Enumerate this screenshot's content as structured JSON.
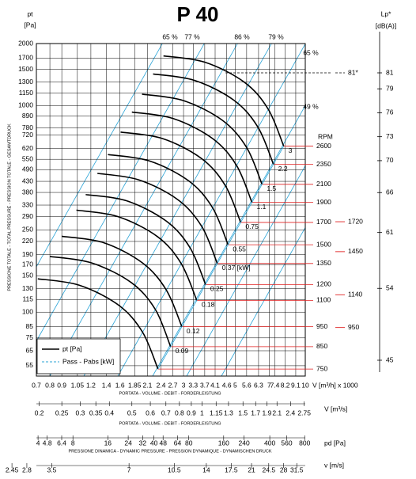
{
  "chart_data": {
    "type": "line",
    "title": "P 40",
    "y_label": [
      "pt",
      "[Pa]"
    ],
    "y_caption": "PRESSIONE TOTALE - TOTAL PRESSURE - PRESSION TOTALE - GESAMTDRUCK",
    "x_label": "V [m³/h] x 1000",
    "x_caption": "PORTATA - VOLUME - DEBIT - FORDERLEISTUNG",
    "log_x": true,
    "log_y": true,
    "grid": true,
    "xlim": [
      0.7,
      10
    ],
    "xticks": [
      0.7,
      0.8,
      0.9,
      1.05,
      1.2,
      1.4,
      1.6,
      1.85,
      2.1,
      2.4,
      2.7,
      3,
      3.3,
      3.7,
      4.1,
      4.6,
      5,
      5.6,
      6.3,
      7,
      7.4,
      8.2,
      9.1,
      10
    ],
    "ylim": [
      49,
      2000
    ],
    "yticks": [
      2000,
      1700,
      1500,
      1300,
      1150,
      1000,
      890,
      780,
      720,
      620,
      550,
      490,
      430,
      380,
      330,
      290,
      250,
      220,
      190,
      170,
      150,
      130,
      115,
      100,
      85,
      75,
      65,
      55
    ],
    "rpm_label": "RPM",
    "curve_color": "#000000",
    "rpm_color": "#e02020",
    "curves": [
      {
        "rpm": 2600,
        "power": "3",
        "x": [
          2.46,
          3.71,
          5.48,
          6.93,
          8.08
        ],
        "values": [
          1743,
          1623,
          1298,
          962,
          637
        ]
      },
      {
        "rpm": 2350,
        "power": "2.2",
        "x": [
          2.22,
          3.35,
          4.95,
          6.27,
          7.3
        ],
        "values": [
          1424,
          1325,
          1060,
          785,
          520
        ]
      },
      {
        "rpm": 2100,
        "power": "1.5",
        "x": [
          1.99,
          3.0,
          4.42,
          5.6,
          6.52
        ],
        "values": [
          1137,
          1058,
          847,
          627,
          416
        ]
      },
      {
        "rpm": 1900,
        "power": "1.1",
        "x": [
          1.8,
          2.71,
          4.0,
          5.07,
          5.9
        ],
        "values": [
          931,
          866,
          693,
          513,
          340
        ]
      },
      {
        "rpm": 1700,
        "power": "0.75",
        "x": [
          1.61,
          2.43,
          3.58,
          4.53,
          5.28
        ],
        "values": [
          745,
          694,
          555,
          411,
          272
        ]
      },
      {
        "rpm": 1500,
        "power": "0.55",
        "x": [
          1.42,
          2.14,
          3.16,
          4.0,
          4.66
        ],
        "values": [
          580,
          540,
          432,
          320,
          212
        ]
      },
      {
        "rpm": 1350,
        "power": "0.37 [kW]",
        "x": [
          1.28,
          1.93,
          2.84,
          3.6,
          4.19
        ],
        "values": [
          470,
          437,
          350,
          259,
          172
        ]
      },
      {
        "rpm": 1200,
        "power": "0.25",
        "x": [
          1.14,
          1.71,
          2.53,
          3.2,
          3.73
        ],
        "values": [
          371,
          346,
          276,
          205,
          136
        ]
      },
      {
        "rpm": 1100,
        "power": "0.18",
        "x": [
          1.04,
          1.57,
          2.32,
          2.93,
          3.42
        ],
        "values": [
          312,
          290,
          232,
          172,
          114
        ]
      },
      {
        "rpm": 950,
        "power": "0.12",
        "x": [
          0.9,
          1.36,
          2.0,
          2.53,
          2.95
        ],
        "values": [
          233,
          217,
          173,
          128,
          85
        ]
      },
      {
        "rpm": 850,
        "power": "0.09",
        "x": [
          0.8,
          1.21,
          1.79,
          2.27,
          2.64
        ],
        "values": [
          186,
          173,
          139,
          103,
          68
        ]
      },
      {
        "rpm": 750,
        "x": [
          0.71,
          1.07,
          1.58,
          2.0,
          2.33
        ],
        "values": [
          145,
          135,
          108,
          80,
          53
        ]
      }
    ],
    "efficiency_color": "#29a3d6",
    "efficiency_labels": [
      "65 %",
      "77 %",
      "86 %",
      "79 %",
      "65 %",
      "49 %"
    ],
    "legend": [
      {
        "name": "pt [Pa]",
        "color": "#000000",
        "style": "solid"
      },
      {
        "name": "Pass - Pabs [kW]",
        "color": "#29a3d6",
        "style": "dashed"
      }
    ],
    "lp_axis": {
      "label": [
        "Lp*",
        "[dB(A)]"
      ],
      "ylim": [
        45,
        81
      ],
      "ticks": [
        81,
        79,
        76,
        73,
        70,
        66,
        61,
        54,
        45
      ],
      "note": {
        "label": "81*",
        "value": 81
      },
      "markers": [
        {
          "label": "1720",
          "value": 62.35
        },
        {
          "label": "1450",
          "value": 58.6
        },
        {
          "label": "1140",
          "value": 53.2
        },
        {
          "label": "950",
          "value": 49.1
        }
      ]
    },
    "scales": [
      {
        "label": "V [m³/s]",
        "caption": "PORTATA - VOLUME - DEBIT - FORDERLEISTUNG",
        "xlim": [
          0.1944,
          2.778
        ],
        "ticks": [
          0.2,
          0.25,
          0.3,
          0.35,
          0.4,
          0.5,
          0.6,
          0.7,
          0.8,
          0.9,
          1,
          1.15,
          1.3,
          1.5,
          1.7,
          1.9,
          2.1,
          2.4,
          2.75
        ]
      },
      {
        "label": "pd [Pa]",
        "caption": "PRESSIONE DINAMICA - DYNAMIC PRESSURE - PRESSION DYNAMIQUE - DYNAMISCHEN DRUCK",
        "xlim": [
          3.87,
          810
        ],
        "ticks": [
          4,
          4.8,
          6.4,
          8,
          16,
          24,
          32,
          40,
          48,
          64,
          80,
          160,
          240,
          400,
          560,
          800
        ]
      },
      {
        "label": "v [m/s]",
        "xlim": [
          3.05,
          34.0
        ],
        "ticks": [
          2.45,
          2.8,
          3.5,
          7,
          10.5,
          14,
          17.5,
          21,
          24.5,
          28,
          31.5
        ]
      }
    ]
  }
}
